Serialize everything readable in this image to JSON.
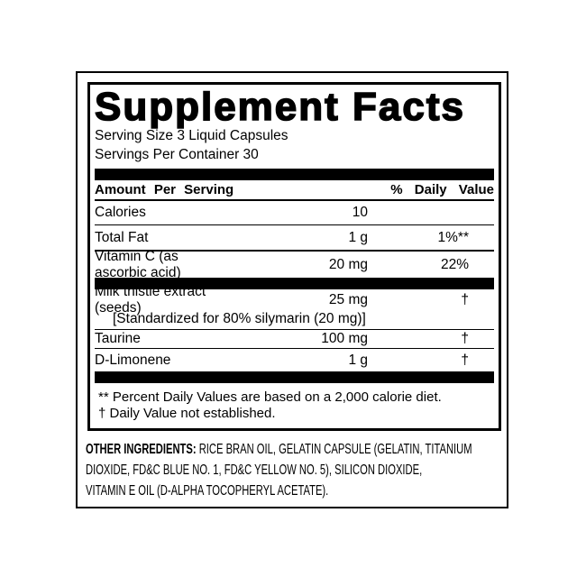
{
  "label": {
    "title": "Supplement Facts",
    "serving_size": "Serving Size 3 Liquid Capsules",
    "servings_per_container": "Servings Per Container 30",
    "columns": {
      "amount_header": "Amount Per Serving",
      "dv_header": "% Daily Value"
    },
    "rows": [
      {
        "name": "Calories",
        "amount": "10",
        "dv": ""
      },
      {
        "name": "Total Fat",
        "amount": "1 g",
        "dv": "1%**"
      },
      {
        "name": "Vitamin C (as ascorbic acid)",
        "amount": "20 mg",
        "dv": "22%"
      },
      {
        "name": "Milk thistle extract (seeds)",
        "detail": "[Standardized for 80% silymarin (20 mg)]",
        "amount": "25 mg",
        "dv": "†"
      },
      {
        "name": "Taurine",
        "amount": "100 mg",
        "dv": "†"
      },
      {
        "name": "D-Limonene",
        "amount": "1 g",
        "dv": "†"
      }
    ],
    "footnotes": [
      "** Percent Daily Values are based on a 2,000 calorie diet.",
      "† Daily Value not established."
    ],
    "other_ingredients": {
      "label": "OTHER INGREDIENTS:",
      "lines": [
        "RICE BRAN OIL, GELATIN CAPSULE (GELATIN, TITANIUM",
        "DIOXIDE, FD&C BLUE NO. 1, FD&C YELLOW NO. 5), SILICON DIOXIDE,",
        "VITAMIN E OIL (D-ALPHA TOCOPHERYL ACETATE)."
      ]
    },
    "colors": {
      "ink": "#000000",
      "paper": "#ffffff"
    }
  }
}
